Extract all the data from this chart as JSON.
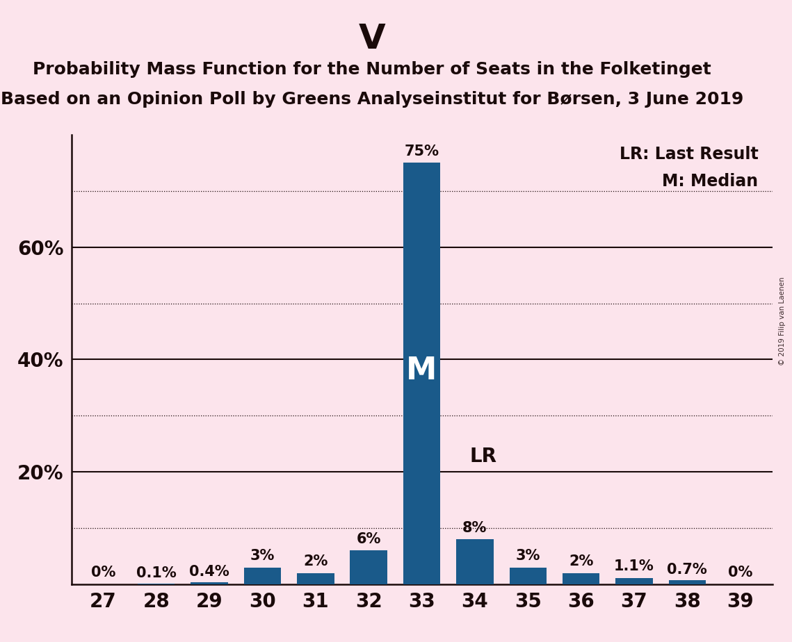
{
  "title": "V",
  "subtitle1": "Probability Mass Function for the Number of Seats in the Folketinget",
  "subtitle2": "Based on an Opinion Poll by Greens Analyseinstitut for Børsen, 3 June 2019",
  "watermark": "© 2019 Filip van Laenen",
  "categories": [
    27,
    28,
    29,
    30,
    31,
    32,
    33,
    34,
    35,
    36,
    37,
    38,
    39
  ],
  "values": [
    0.0,
    0.1,
    0.4,
    3.0,
    2.0,
    6.0,
    75.0,
    8.0,
    3.0,
    2.0,
    1.1,
    0.7,
    0.0
  ],
  "bar_labels": [
    "0%",
    "0.1%",
    "0.4%",
    "3%",
    "2%",
    "6%",
    "75%",
    "8%",
    "3%",
    "2%",
    "1.1%",
    "0.7%",
    "0%"
  ],
  "median_bar": 33,
  "lr_bar": 34,
  "bar_color": "#1a5a8a",
  "background_color": "#fce4ec",
  "text_color": "#1a0a0a",
  "dotted_gridlines": [
    10,
    30,
    50,
    70
  ],
  "solid_gridlines": [
    20,
    40,
    60
  ],
  "ylim": [
    0,
    80
  ],
  "legend_lr": "LR: Last Result",
  "legend_m": "M: Median",
  "title_fontsize": 36,
  "subtitle_fontsize": 18,
  "bar_label_fontsize": 15,
  "axis_fontsize": 20
}
